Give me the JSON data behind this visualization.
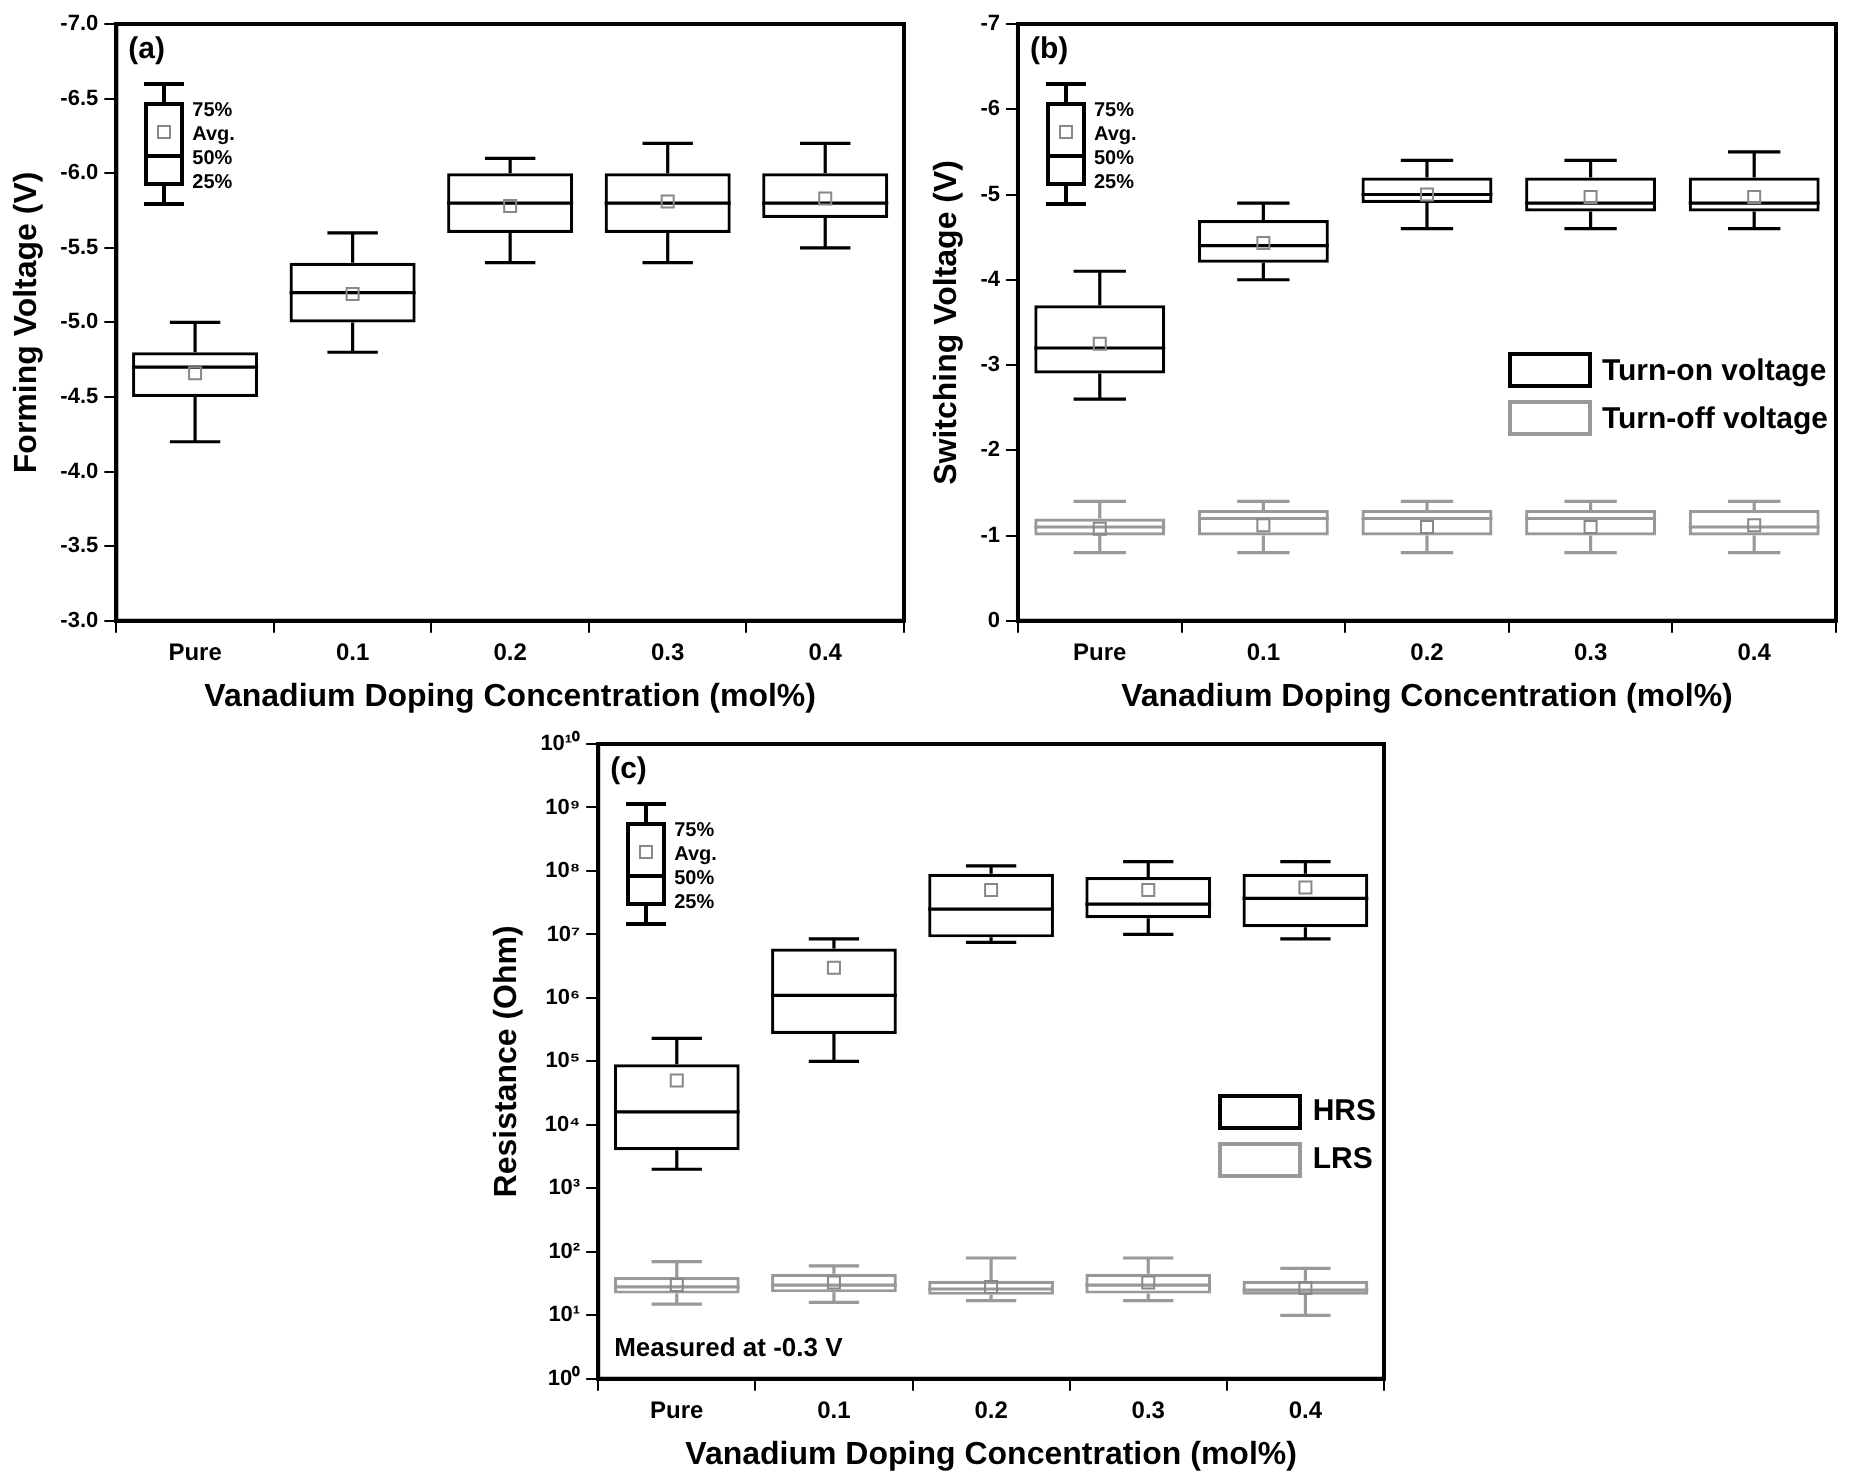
{
  "chart_data": [
    {
      "type": "box",
      "xlabel": "Vanadium Doping Concentration (mol%)",
      "ylabel": "Forming Voltage (V)",
      "categories": [
        "Pure",
        "0.1",
        "0.2",
        "0.3",
        "0.4"
      ],
      "color": "#000000",
      "boxes": [
        {
          "low": -5.0,
          "q1": -4.8,
          "median": -4.7,
          "q3": -4.5,
          "high": -4.2,
          "mean": -4.66
        },
        {
          "low": -5.6,
          "q1": -5.4,
          "median": -5.2,
          "q3": -5.0,
          "high": -4.8,
          "mean": -5.19
        },
        {
          "low": -6.1,
          "q1": -6.0,
          "median": -5.8,
          "q3": -5.6,
          "high": -5.4,
          "mean": -5.78
        },
        {
          "low": -6.2,
          "q1": -6.0,
          "median": -5.8,
          "q3": -5.6,
          "high": -5.4,
          "mean": -5.81
        },
        {
          "low": -6.2,
          "q1": -6.0,
          "median": -5.8,
          "q3": -5.7,
          "high": -5.5,
          "mean": -5.83
        }
      ],
      "ylim": [
        -3,
        -7
      ],
      "yticks": [
        {
          "value": -3,
          "label": "-3.0"
        },
        {
          "value": -3.5,
          "label": "-3.5"
        },
        {
          "value": -4,
          "label": "-4.0"
        },
        {
          "value": -4.5,
          "label": "-4.5"
        },
        {
          "value": -5,
          "label": "-5.0"
        },
        {
          "value": -5.5,
          "label": "-5.5"
        },
        {
          "value": -6,
          "label": "-6.0"
        },
        {
          "value": -6.5,
          "label": "-6.5"
        },
        {
          "value": -7,
          "label": "-7.0"
        }
      ],
      "annotations": [
        "(a)",
        "75%",
        "Avg.",
        "50%",
        "25%"
      ]
    },
    {
      "type": "box",
      "xlabel": "Vanadium Doping Concentration (mol%)",
      "ylabel": "Switching Voltage (V)",
      "categories": [
        "Pure",
        "0.1",
        "0.2",
        "0.3",
        "0.4"
      ],
      "series": [
        {
          "name": "Turn-on voltage",
          "color": "#000000",
          "boxes": [
            {
              "low": -4.1,
              "q1": -3.7,
              "median": -3.2,
              "q3": -2.9,
              "high": -2.6,
              "mean": -3.25
            },
            {
              "low": -4.9,
              "q1": -4.7,
              "median": -4.4,
              "q3": -4.2,
              "high": -4.0,
              "mean": -4.43
            },
            {
              "low": -5.4,
              "q1": -5.2,
              "median": -5.0,
              "q3": -4.9,
              "high": -4.6,
              "mean": -5.0
            },
            {
              "low": -5.4,
              "q1": -5.2,
              "median": -4.9,
              "q3": -4.8,
              "high": -4.6,
              "mean": -4.97
            },
            {
              "low": -5.5,
              "q1": -5.2,
              "median": -4.9,
              "q3": -4.8,
              "high": -4.6,
              "mean": -4.97
            }
          ]
        },
        {
          "name": "Turn-off voltage",
          "color": "#999999",
          "boxes": [
            {
              "low": -1.4,
              "q1": -1.2,
              "median": -1.1,
              "q3": -1.0,
              "high": -0.8,
              "mean": -1.08
            },
            {
              "low": -1.4,
              "q1": -1.3,
              "median": -1.2,
              "q3": -1.0,
              "high": -0.8,
              "mean": -1.12
            },
            {
              "low": -1.4,
              "q1": -1.3,
              "median": -1.2,
              "q3": -1.0,
              "high": -0.8,
              "mean": -1.1
            },
            {
              "low": -1.4,
              "q1": -1.3,
              "median": -1.2,
              "q3": -1.0,
              "high": -0.8,
              "mean": -1.1
            },
            {
              "low": -1.4,
              "q1": -1.3,
              "median": -1.1,
              "q3": -1.0,
              "high": -0.8,
              "mean": -1.12
            }
          ]
        }
      ],
      "ylim": [
        0,
        -7
      ],
      "yticks": [
        0,
        -1,
        -2,
        -3,
        -4,
        -5,
        -6,
        -7
      ],
      "legend": "right",
      "annotations": [
        "(b)",
        "75%",
        "Avg.",
        "50%",
        "25%"
      ]
    },
    {
      "type": "box",
      "xlabel": "Vanadium Doping Concentration (mol%)",
      "ylabel": "Resistance (Ohm)",
      "categories": [
        "Pure",
        "0.1",
        "0.2",
        "0.3",
        "0.4"
      ],
      "log": true,
      "series": [
        {
          "name": "HRS",
          "color": "#000000",
          "boxes": [
            {
              "low": 2000,
              "q1": 4000,
              "median": 16000,
              "q3": 90000,
              "high": 230000,
              "mean": 50000
            },
            {
              "low": 100000,
              "q1": 270000,
              "median": 1100000,
              "q3": 6000000,
              "high": 8500000,
              "mean": 3000000
            },
            {
              "low": 7500000,
              "q1": 9000000,
              "median": 25000000,
              "q3": 90000000,
              "high": 120000000,
              "mean": 50000000
            },
            {
              "low": 10000000,
              "q1": 18000000,
              "median": 30000000,
              "q3": 80000000,
              "high": 140000000,
              "mean": 50000000
            },
            {
              "low": 8500000,
              "q1": 13000000,
              "median": 37000000,
              "q3": 90000000,
              "high": 140000000,
              "mean": 55000000
            }
          ]
        },
        {
          "name": "LRS",
          "color": "#999999",
          "boxes": [
            {
              "low": 15,
              "q1": 22,
              "median": 28,
              "q3": 40,
              "high": 70,
              "mean": 30
            },
            {
              "low": 16,
              "q1": 23,
              "median": 30,
              "q3": 45,
              "high": 60,
              "mean": 33
            },
            {
              "low": 17,
              "q1": 21,
              "median": 26,
              "q3": 35,
              "high": 80,
              "mean": 28
            },
            {
              "low": 17,
              "q1": 22,
              "median": 30,
              "q3": 45,
              "high": 80,
              "mean": 33
            },
            {
              "low": 10,
              "q1": 21,
              "median": 25,
              "q3": 35,
              "high": 55,
              "mean": 27
            }
          ]
        }
      ],
      "ylim": [
        1,
        10000000000
      ],
      "yticks": [
        {
          "value": 1,
          "label": "10⁰"
        },
        {
          "value": 10,
          "label": "10¹"
        },
        {
          "value": 100,
          "label": "10²"
        },
        {
          "value": 1000,
          "label": "10³"
        },
        {
          "value": 10000,
          "label": "10⁴"
        },
        {
          "value": 100000,
          "label": "10⁵"
        },
        {
          "value": 1000000,
          "label": "10⁶"
        },
        {
          "value": 10000000,
          "label": "10⁷"
        },
        {
          "value": 100000000,
          "label": "10⁸"
        },
        {
          "value": 1000000000,
          "label": "10⁹"
        },
        {
          "value": 10000000000,
          "label": "10¹⁰"
        }
      ],
      "legend": "right",
      "annotations": [
        "(c)",
        "75%",
        "Avg.",
        "50%",
        "25%",
        "Measured at -0.3 V"
      ]
    }
  ]
}
